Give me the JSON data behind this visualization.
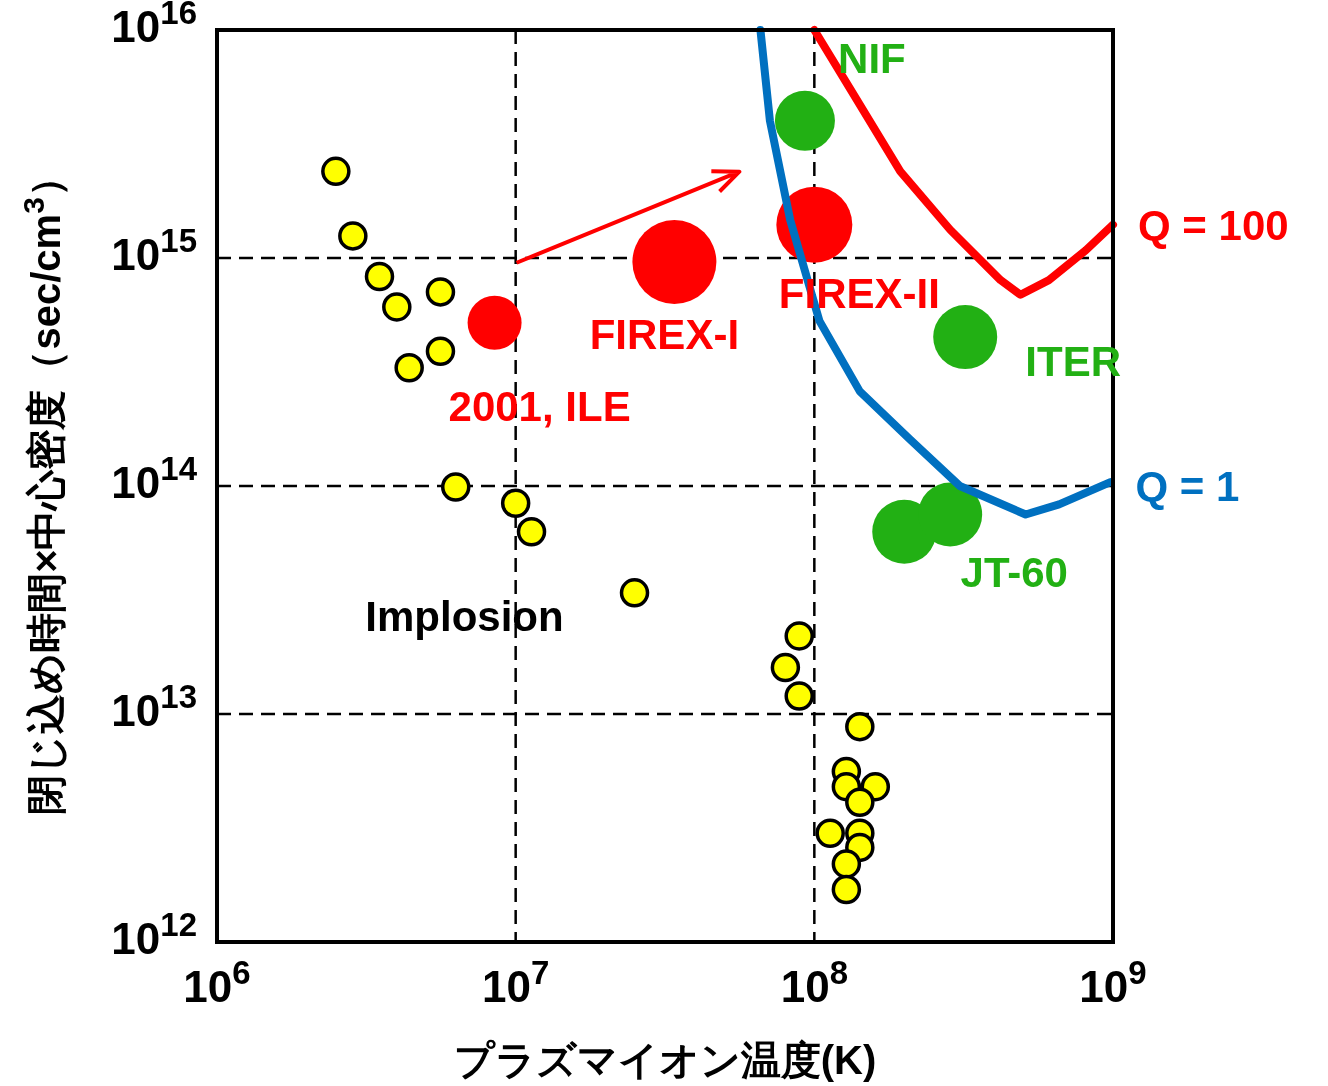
{
  "chart_data": {
    "type": "scatter",
    "xlabel": "プラズマイオン温度(K)",
    "ylabel": "閉じ込め時間×中心密度（sec/cm$^{3}$）",
    "log": "xy",
    "grid": true,
    "marker": "circle",
    "xlim": [
      1000000.0,
      1000000000.0
    ],
    "ylim": [
      1000000000000.0,
      1e+16
    ],
    "xticks": [
      {
        "value": 1000000.0,
        "label": "10$^{6}$"
      },
      {
        "value": 10000000.0,
        "label": "10$^{7}$"
      },
      {
        "value": 100000000.0,
        "label": "10$^{8}$"
      },
      {
        "value": 1000000000.0,
        "label": "10$^{9}$"
      }
    ],
    "yticks": [
      {
        "value": 1000000000000.0,
        "label": "10$^{12}$"
      },
      {
        "value": 10000000000000.0,
        "label": "10$^{13}$"
      },
      {
        "value": 100000000000000.0,
        "label": "10$^{14}$"
      },
      {
        "value": 1000000000000000.0,
        "label": "10$^{15}$"
      },
      {
        "value": 1e+16,
        "label": "10$^{16}$"
      }
    ],
    "series": [
      {
        "name": "Implosion",
        "color": "#ffff00",
        "x": [
          2500000.0,
          2850000.0,
          3500000.0,
          4000000.0,
          5600000.0,
          4400000.0,
          5600000.0,
          6300000.0,
          10000000.0,
          11300000.0,
          25000000.0,
          89000000.0,
          80000000.0,
          89000000.0,
          142000000.0,
          128000000.0,
          128000000.0,
          160000000.0,
          142000000.0,
          113000000.0,
          142000000.0,
          142000000.0,
          128000000.0,
          128000000.0
        ],
        "values": [
          2400000000000000.0,
          1250000000000000.0,
          830000000000000.0,
          610000000000000.0,
          710000000000000.0,
          330000000000000.0,
          390000000000000.0,
          99000000000000.0,
          84000000000000.0,
          63000000000000.0,
          34000000000000.0,
          22000000000000.0,
          16000000000000.0,
          12000000000000.0,
          8800000000000.0,
          5600000000000.0,
          4800000000000.0,
          4800000000000.0,
          4100000000000.0,
          3000000000000.0,
          3000000000000.0,
          2600000000000.0,
          2200000000000.0,
          1700000000000.0
        ]
      },
      {
        "name": "2001, ILE",
        "color": "#ff0000",
        "x": [
          8500000.0
        ],
        "values": [
          520000000000000.0
        ]
      },
      {
        "name": "FIREX-I",
        "color": "#ff0000",
        "x": [
          34000000.0
        ],
        "values": [
          960000000000000.0
        ]
      },
      {
        "name": "FIREX-II",
        "color": "#ff0000",
        "x": [
          100000000.0
        ],
        "values": [
          1400000000000000.0
        ]
      },
      {
        "name": "NIF",
        "color": "#22b014",
        "x": [
          93000000.0
        ],
        "values": [
          4000000000000000.0
        ]
      },
      {
        "name": "ITER",
        "color": "#22b014",
        "x": [
          320000000.0
        ],
        "values": [
          450000000000000.0
        ]
      },
      {
        "name": "JT-60",
        "color": "#22b014",
        "x": [
          200000000.0,
          285000000.0
        ],
        "values": [
          63000000000000.0,
          75000000000000.0
        ]
      },
      {
        "name": "Q = 1",
        "type": "line",
        "marker": "none",
        "color": "#0070c0",
        "x": [
          66000000.0,
          71000000.0,
          83000000.0,
          104000000.0,
          142000000.0,
          209000000.0,
          307000000.0,
          510000000.0,
          660000000.0,
          980000000.0
        ],
        "values": [
          1e+16,
          4000000000000000.0,
          1470000000000000.0,
          530000000000000.0,
          260000000000000.0,
          160000000000000.0,
          100000000000000.0,
          75000000000000.0,
          83000000000000.0,
          104000000000000.0
        ]
      },
      {
        "name": "Q = 100",
        "type": "line",
        "marker": "none",
        "color": "#ff0000",
        "x": [
          100000000.0,
          132000000.0,
          194000000.0,
          285000000.0,
          420000000.0,
          490000000.0,
          610000000.0,
          810000000.0,
          1000000000.0
        ],
        "values": [
          1e+16,
          5500000000000000.0,
          2400000000000000.0,
          1330000000000000.0,
          800000000000000.0,
          690000000000000.0,
          800000000000000.0,
          1080000000000000.0,
          1400000000000000.0
        ]
      }
    ]
  }
}
